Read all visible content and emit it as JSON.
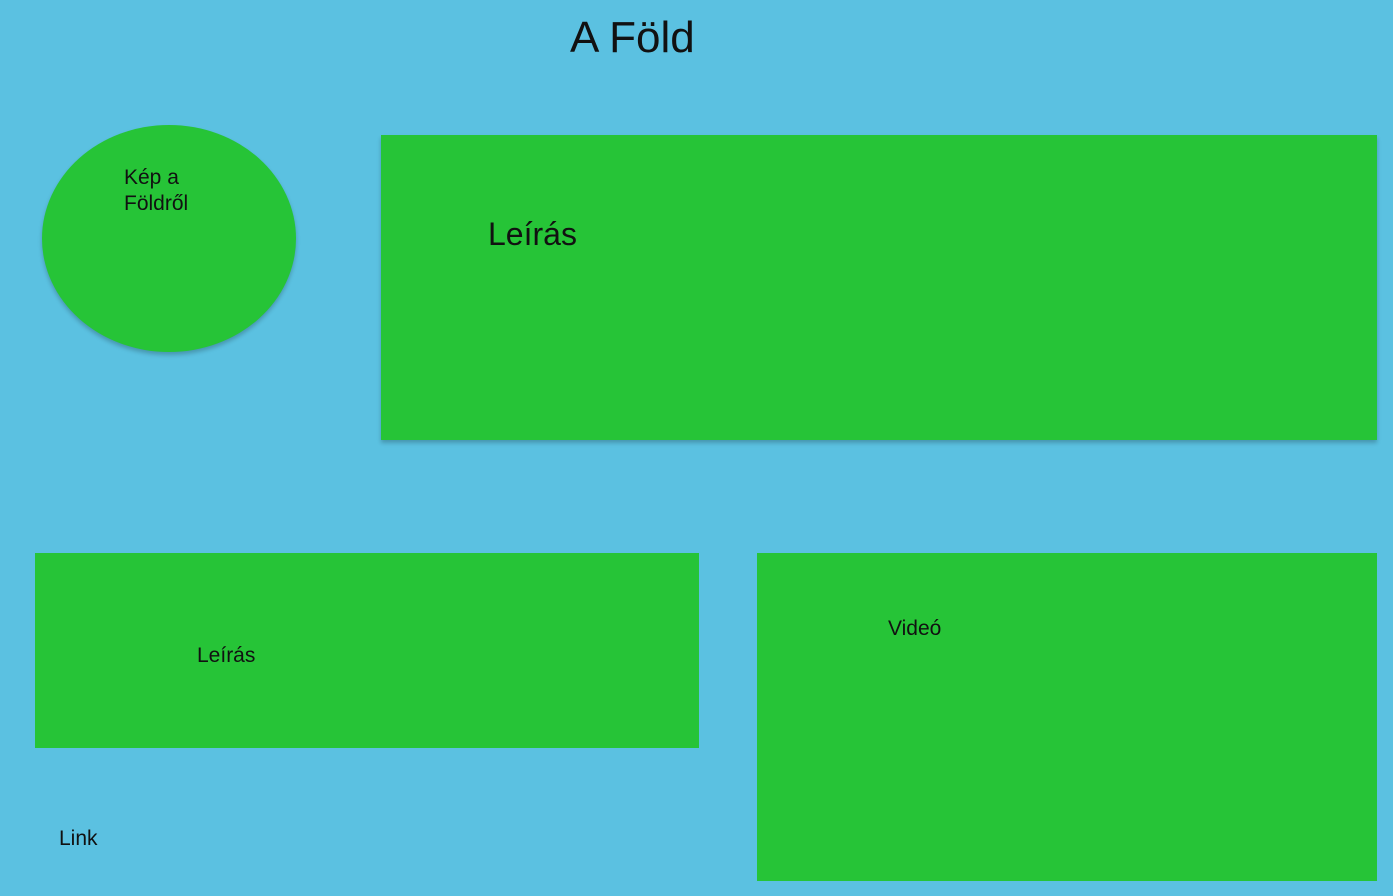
{
  "theme": {
    "background": "#5bc1e1",
    "box_fill": "#26c437",
    "text": "#111111"
  },
  "page": {
    "title": "A Föld"
  },
  "image_placeholder": {
    "label": "Kép a Földről"
  },
  "main_description": {
    "label": "Leírás"
  },
  "secondary_description": {
    "label": "Leírás"
  },
  "video": {
    "label": "Videó"
  },
  "link": {
    "label": "Link"
  }
}
